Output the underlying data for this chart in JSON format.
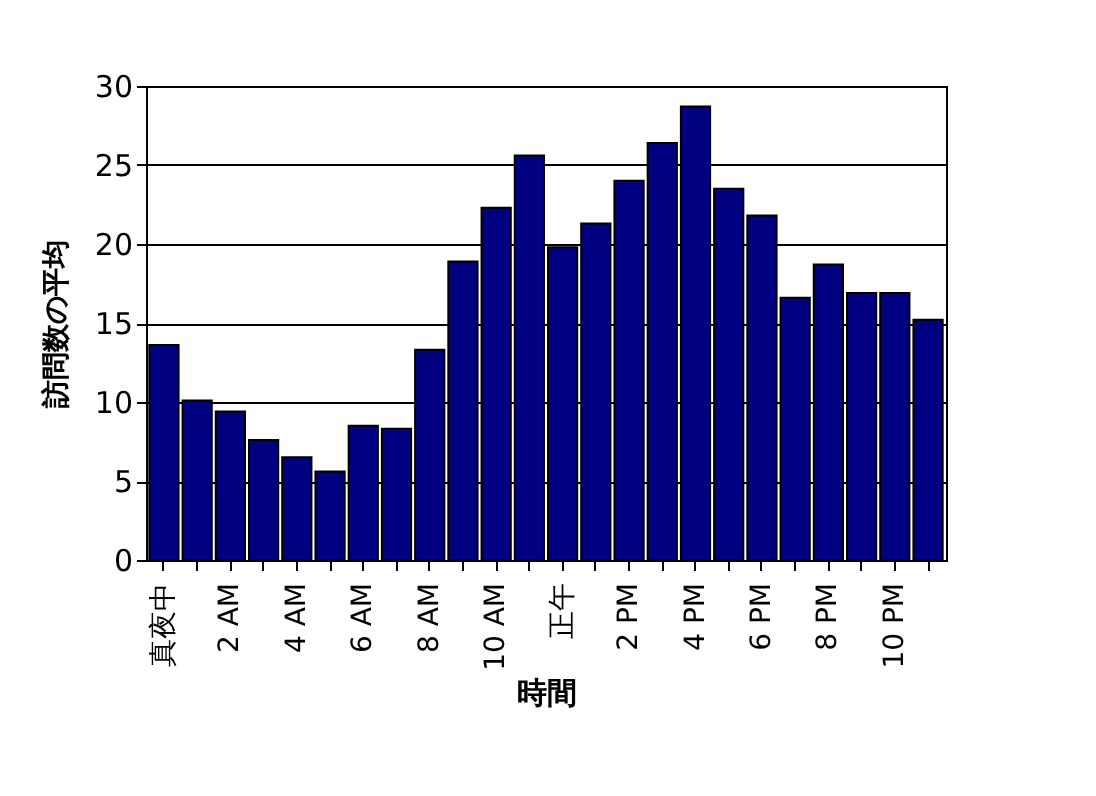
{
  "chart_data": {
    "type": "bar",
    "xlabel": "時間",
    "ylabel": "訪問数の平均",
    "categories": [
      "真夜中",
      null,
      "2 AM",
      null,
      "4 AM",
      null,
      "6 AM",
      null,
      "8 AM",
      null,
      "10 AM",
      null,
      "正午",
      null,
      "2 PM",
      null,
      "4 PM",
      null,
      "6 PM",
      null,
      "8 PM",
      null,
      "10 PM",
      null
    ],
    "values": [
      13.6,
      10.1,
      9.4,
      7.6,
      6.5,
      5.6,
      8.5,
      8.3,
      13.3,
      18.9,
      22.3,
      25.6,
      19.8,
      21.3,
      24.0,
      26.4,
      28.7,
      23.5,
      21.8,
      16.6,
      18.7,
      16.9,
      16.9,
      15.2
    ],
    "color": "#000080",
    "ylim": [
      0,
      30
    ],
    "yticks": [
      0,
      5,
      10,
      15,
      20,
      25,
      30
    ],
    "grid": "y"
  }
}
